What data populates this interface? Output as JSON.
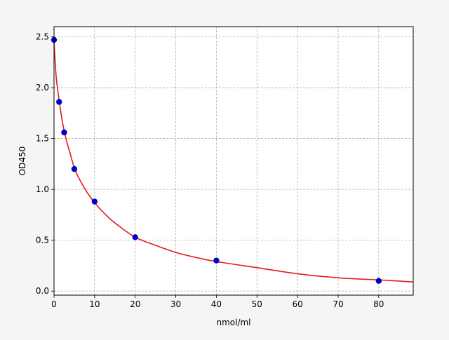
{
  "chart_data": {
    "type": "scatter",
    "title": "",
    "xlabel": "nmol/ml",
    "ylabel": "OD450",
    "xlim": [
      0,
      88.5
    ],
    "ylim": [
      -0.04,
      2.6
    ],
    "x_ticks": [
      0,
      10,
      20,
      30,
      40,
      50,
      60,
      70,
      80
    ],
    "x_tick_labels": [
      "0",
      "10",
      "20",
      "30",
      "40",
      "50",
      "60",
      "70",
      "80"
    ],
    "y_ticks": [
      0.0,
      0.5,
      1.0,
      1.5,
      2.0,
      2.5
    ],
    "y_tick_labels": [
      "0.0",
      "0.5",
      "1.0",
      "1.5",
      "2.0",
      "2.5"
    ],
    "grid": true,
    "legend": "none",
    "points": {
      "x": [
        0,
        1.25,
        2.5,
        5,
        10,
        20,
        40,
        80
      ],
      "y": [
        2.47,
        1.86,
        1.56,
        1.2,
        0.88,
        0.53,
        0.3,
        0.1
      ],
      "color": "#0000cc"
    },
    "fit_curve": {
      "x": [
        0,
        0.5,
        1,
        2,
        3,
        4,
        5,
        6,
        8,
        10,
        12,
        15,
        20,
        25,
        30,
        35,
        40,
        50,
        60,
        70,
        80,
        88.5
      ],
      "y": [
        2.45,
        2.12,
        1.95,
        1.68,
        1.49,
        1.35,
        1.21,
        1.12,
        0.98,
        0.87,
        0.78,
        0.67,
        0.53,
        0.45,
        0.38,
        0.33,
        0.29,
        0.23,
        0.17,
        0.13,
        0.11,
        0.09
      ],
      "color": "#e31a1c"
    },
    "colors": {
      "background": "#f5f5f5",
      "plot_background": "#ffffff",
      "grid": "#b0b0b0",
      "axis": "#000000"
    }
  }
}
